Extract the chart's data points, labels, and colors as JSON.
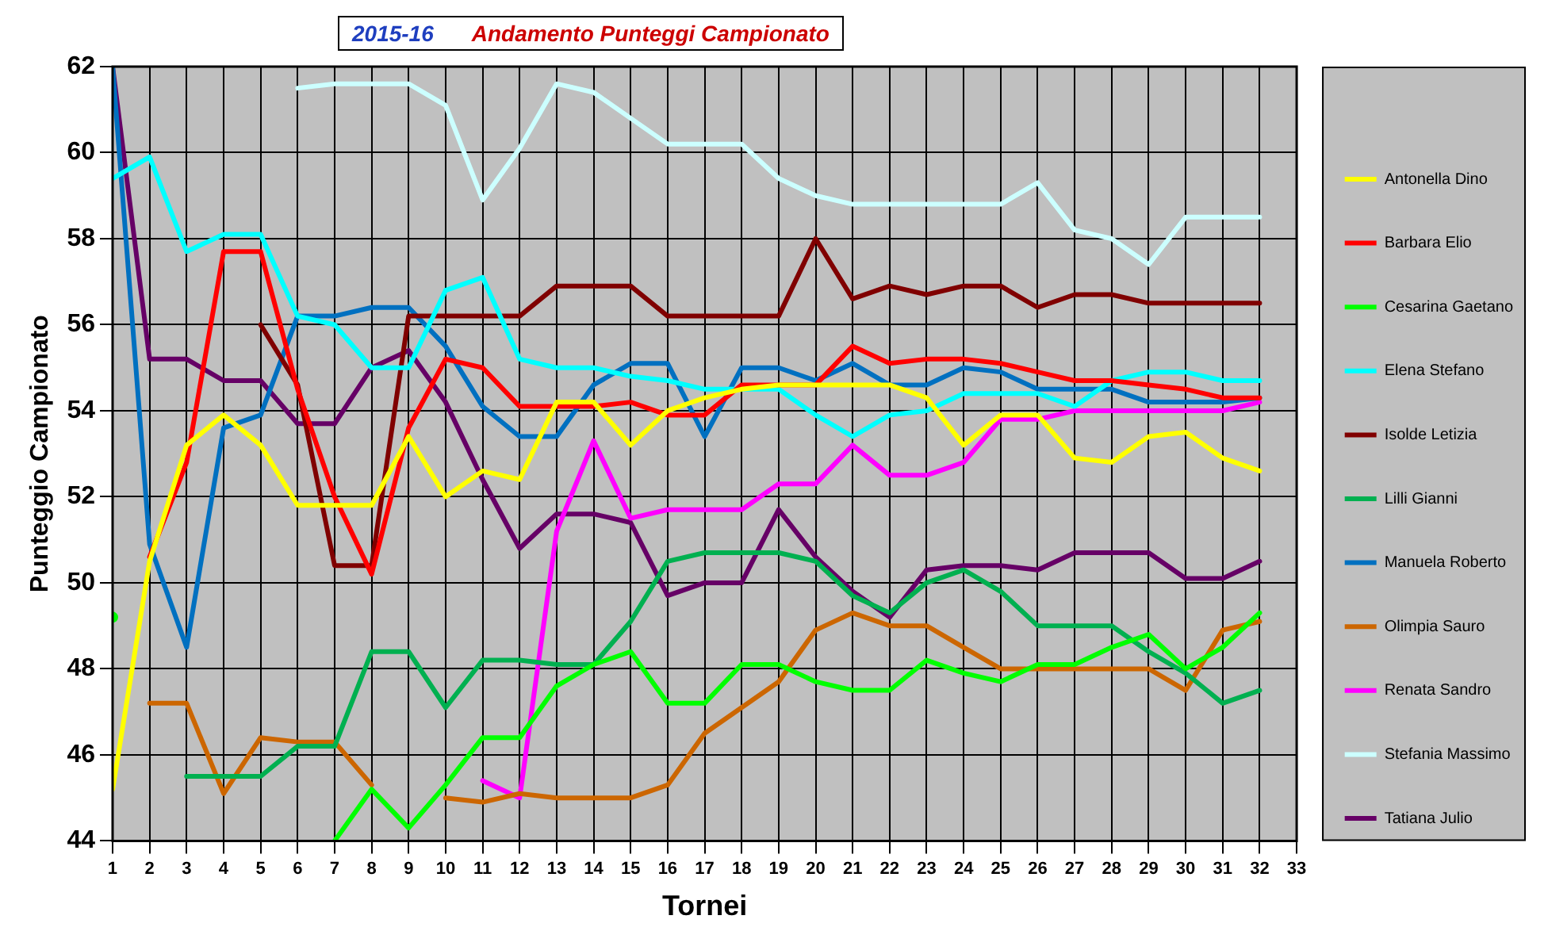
{
  "chart_data": {
    "type": "line",
    "title": "2015-16",
    "subtitle": "Andamento Punteggi Campionato",
    "xlabel": "Tornei",
    "ylabel": "Punteggio Campionato",
    "x": [
      1,
      2,
      3,
      4,
      5,
      6,
      7,
      8,
      9,
      10,
      11,
      12,
      13,
      14,
      15,
      16,
      17,
      18,
      19,
      20,
      21,
      22,
      23,
      24,
      25,
      26,
      27,
      28,
      29,
      30,
      31,
      32
    ],
    "xlim": [
      1,
      33
    ],
    "xticks": [
      1,
      2,
      3,
      4,
      5,
      6,
      7,
      8,
      9,
      10,
      11,
      12,
      13,
      14,
      15,
      16,
      17,
      18,
      19,
      20,
      21,
      22,
      23,
      24,
      25,
      26,
      27,
      28,
      29,
      30,
      31,
      32,
      33
    ],
    "ylim": [
      44,
      62
    ],
    "yticks": [
      44,
      46,
      48,
      50,
      52,
      54,
      56,
      58,
      60,
      62
    ],
    "grid": true,
    "legend": "right",
    "marker": "none",
    "line_style": "solid",
    "series": [
      {
        "name": "Antonella Dino",
        "color": "#ffff00",
        "values": [
          45.2,
          50.5,
          53.2,
          53.9,
          53.2,
          51.8,
          51.8,
          51.8,
          53.4,
          52.0,
          52.6,
          52.4,
          54.2,
          54.2,
          53.2,
          54.0,
          54.3,
          54.5,
          54.6,
          54.6,
          54.6,
          54.6,
          54.3,
          53.2,
          53.9,
          53.9,
          52.9,
          52.8,
          53.4,
          53.5,
          52.9,
          52.6
        ]
      },
      {
        "name": "Barbara Elio",
        "color": "#ff0000",
        "values": [
          null,
          50.6,
          52.8,
          57.7,
          57.7,
          54.5,
          52.0,
          50.2,
          53.6,
          55.2,
          55.0,
          54.1,
          54.1,
          54.1,
          54.2,
          53.9,
          53.9,
          54.6,
          54.6,
          54.6,
          55.5,
          55.1,
          55.2,
          55.2,
          55.1,
          54.9,
          54.7,
          54.7,
          54.6,
          54.5,
          54.3,
          54.3
        ]
      },
      {
        "name": "Cesarina Gaetano",
        "color": "#00ff00",
        "values": [
          49.2,
          null,
          null,
          null,
          null,
          null,
          44.0,
          45.2,
          44.3,
          45.3,
          46.4,
          46.4,
          47.6,
          48.1,
          48.4,
          47.2,
          47.2,
          48.1,
          48.1,
          47.7,
          47.5,
          47.5,
          48.2,
          47.9,
          47.7,
          48.1,
          48.1,
          48.5,
          48.8,
          48.0,
          48.5,
          49.3
        ]
      },
      {
        "name": "Elena Stefano",
        "color": "#00ffff",
        "values": [
          59.4,
          59.9,
          57.7,
          58.1,
          58.1,
          56.2,
          56.0,
          55.0,
          55.0,
          56.8,
          57.1,
          55.2,
          55.0,
          55.0,
          54.8,
          54.7,
          54.5,
          54.5,
          54.5,
          53.9,
          53.4,
          53.9,
          54.0,
          54.4,
          54.4,
          54.4,
          54.1,
          54.7,
          54.9,
          54.9,
          54.7,
          54.7
        ]
      },
      {
        "name": "Isolde Letizia",
        "color": "#800000",
        "values": [
          null,
          null,
          null,
          null,
          56.0,
          54.6,
          50.4,
          50.4,
          56.2,
          56.2,
          56.2,
          56.2,
          56.9,
          56.9,
          56.9,
          56.2,
          56.2,
          56.2,
          56.2,
          58.0,
          56.6,
          56.9,
          56.7,
          56.9,
          56.9,
          56.4,
          56.7,
          56.7,
          56.5,
          56.5,
          56.5,
          56.5
        ]
      },
      {
        "name": "Lilli Gianni",
        "color": "#00b050",
        "values": [
          null,
          null,
          45.5,
          45.5,
          45.5,
          46.2,
          46.2,
          48.4,
          48.4,
          47.1,
          48.2,
          48.2,
          48.1,
          48.1,
          49.1,
          50.5,
          50.7,
          50.7,
          50.7,
          50.5,
          49.7,
          49.3,
          50.0,
          50.3,
          49.8,
          49.0,
          49.0,
          49.0,
          48.4,
          47.9,
          47.2,
          47.5
        ]
      },
      {
        "name": "Manuela Roberto",
        "color": "#0070c0",
        "values": [
          62,
          50.9,
          48.5,
          53.6,
          53.9,
          56.2,
          56.2,
          56.4,
          56.4,
          55.5,
          54.1,
          53.4,
          53.4,
          54.6,
          55.1,
          55.1,
          53.4,
          55.0,
          55.0,
          54.7,
          55.1,
          54.6,
          54.6,
          55.0,
          54.9,
          54.5,
          54.5,
          54.5,
          54.2,
          54.2,
          54.2,
          54.3
        ]
      },
      {
        "name": "Olimpia Sauro",
        "color": "#cc6600",
        "values": [
          null,
          47.2,
          47.2,
          45.1,
          46.4,
          46.3,
          46.3,
          45.3,
          null,
          45.0,
          44.9,
          45.1,
          45.0,
          45.0,
          45.0,
          45.3,
          46.5,
          47.1,
          47.7,
          48.9,
          49.3,
          49.0,
          49.0,
          48.5,
          48.0,
          48.0,
          48.0,
          48.0,
          48.0,
          47.5,
          48.9,
          49.1
        ]
      },
      {
        "name": "Renata Sandro",
        "color": "#ff00ff",
        "values": [
          null,
          null,
          null,
          null,
          null,
          null,
          null,
          null,
          null,
          null,
          45.4,
          45.0,
          51.2,
          53.3,
          51.5,
          51.7,
          51.7,
          51.7,
          52.3,
          52.3,
          53.2,
          52.5,
          52.5,
          52.8,
          53.8,
          53.8,
          54.0,
          54.0,
          54.0,
          54.0,
          54.0,
          54.2
        ]
      },
      {
        "name": "Stefania Massimo",
        "color": "#ccffff",
        "values": [
          null,
          null,
          null,
          null,
          null,
          61.5,
          61.6,
          61.6,
          61.6,
          61.1,
          58.9,
          60.1,
          61.6,
          61.4,
          60.8,
          60.2,
          60.2,
          60.2,
          59.4,
          59.0,
          58.8,
          58.8,
          58.8,
          58.8,
          58.8,
          59.3,
          58.2,
          58.0,
          57.4,
          58.5,
          58.5,
          58.5
        ]
      },
      {
        "name": "Tatiana Julio",
        "color": "#660066",
        "values": [
          62,
          55.2,
          55.2,
          54.7,
          54.7,
          53.7,
          53.7,
          55.0,
          55.4,
          54.2,
          52.4,
          50.8,
          51.6,
          51.6,
          51.4,
          49.7,
          50.0,
          50.0,
          51.7,
          50.6,
          49.8,
          49.2,
          50.3,
          50.4,
          50.4,
          50.3,
          50.7,
          50.7,
          50.7,
          50.1,
          50.1,
          50.5
        ]
      }
    ]
  }
}
